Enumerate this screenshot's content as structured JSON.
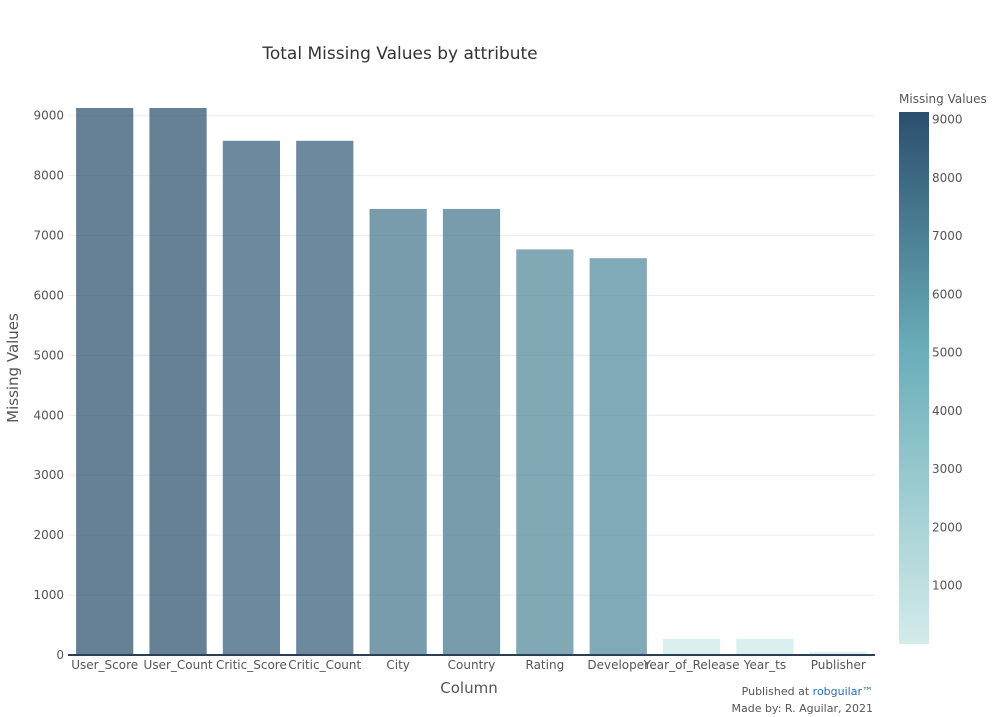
{
  "chart_data": {
    "type": "bar",
    "title": "Total Missing Values by attribute",
    "xlabel": "Column",
    "ylabel": "Missing Values",
    "categories": [
      "User_Score",
      "User_Count",
      "Critic_Score",
      "Critic_Count",
      "City",
      "Country",
      "Rating",
      "Developer",
      "Year_of_Release",
      "Year_ts",
      "Publisher"
    ],
    "values": [
      9129,
      9129,
      8582,
      8582,
      7445,
      7445,
      6769,
      6623,
      269,
      269,
      54
    ],
    "ylim": [
      0,
      9129
    ],
    "yticks": [
      0,
      1000,
      2000,
      3000,
      4000,
      5000,
      6000,
      7000,
      8000,
      9000
    ],
    "grid": true,
    "colorbar": {
      "title": "Missing Values",
      "ticks": [
        1000,
        2000,
        3000,
        4000,
        5000,
        6000,
        7000,
        8000,
        9000
      ],
      "low_color": "#d3ecea",
      "mid_color": "#6aaeb9",
      "high_color": "#2b4f6e"
    }
  },
  "credits": {
    "published_prefix": "Published at ",
    "published_link": "robguilar™",
    "made_by": "Made by: R. Aguilar, 2021"
  }
}
